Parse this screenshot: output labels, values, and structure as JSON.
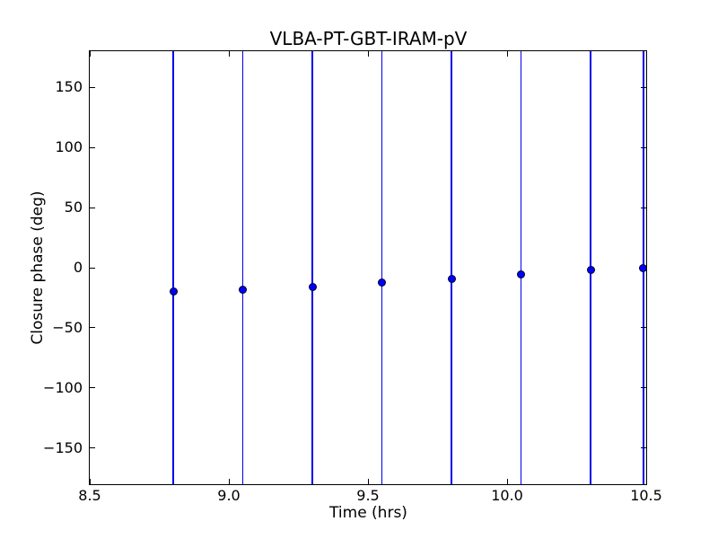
{
  "figure": {
    "background": "#ffffff",
    "frame_color": "#000000",
    "text_color": "#000000"
  },
  "chart_data": {
    "type": "scatter",
    "subtype": "errorbar",
    "title": "VLBA-PT-GBT-IRAM-pV",
    "xlabel": "Time (hrs)",
    "ylabel": "Closure phase (deg)",
    "xlim": [
      8.5,
      10.5
    ],
    "ylim": [
      -180,
      180
    ],
    "grid": false,
    "legend": null,
    "xticks": {
      "values": [
        8.5,
        9.0,
        9.5,
        10.0,
        10.5
      ],
      "labels": [
        "8.5",
        "9.0",
        "9.5",
        "10.0",
        "10.5"
      ]
    },
    "yticks": {
      "values": [
        150,
        100,
        50,
        0,
        -50,
        -100,
        -150
      ],
      "labels": [
        "150",
        "100",
        "50",
        "0",
        "−50",
        "−100",
        "−150"
      ]
    },
    "series": [
      {
        "name": "closure-phase",
        "marker": "o",
        "marker_color": "#0000ff",
        "marker_edge_color": "#000022",
        "errorbar_color": "#0000ee",
        "x": [
          8.8,
          9.05,
          9.3,
          9.55,
          9.8,
          10.05,
          10.3,
          10.49
        ],
        "y": [
          -19.6,
          -18.1,
          -16.4,
          -12.2,
          -9.5,
          -5.5,
          -2.0,
          -0.7
        ],
        "yerr_note": "error bars extend past both y-axis limits; vertical lines clipped at ±180"
      }
    ]
  }
}
